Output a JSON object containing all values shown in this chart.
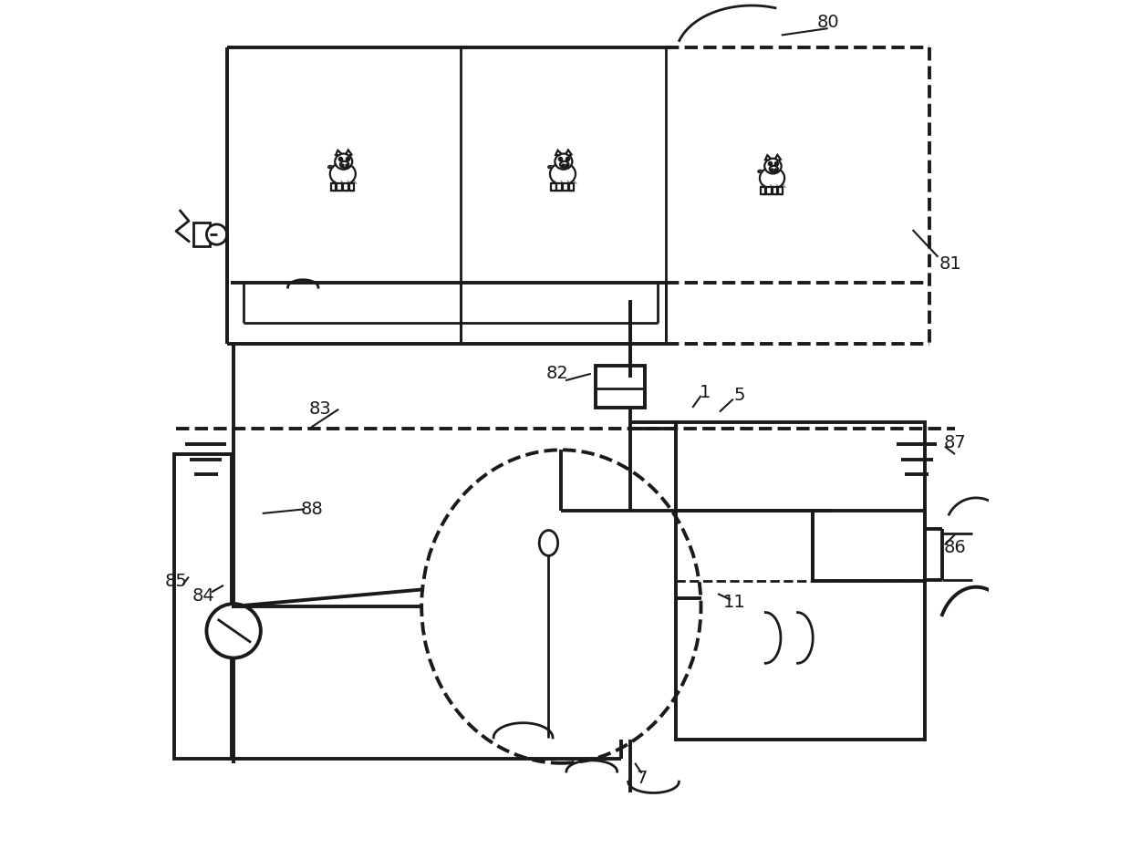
{
  "bg_color": "#ffffff",
  "lc": "#1a1a1a",
  "lw": 2.0,
  "lwt": 2.8,
  "fig_w": 12.4,
  "fig_h": 9.31,
  "dpi": 100
}
